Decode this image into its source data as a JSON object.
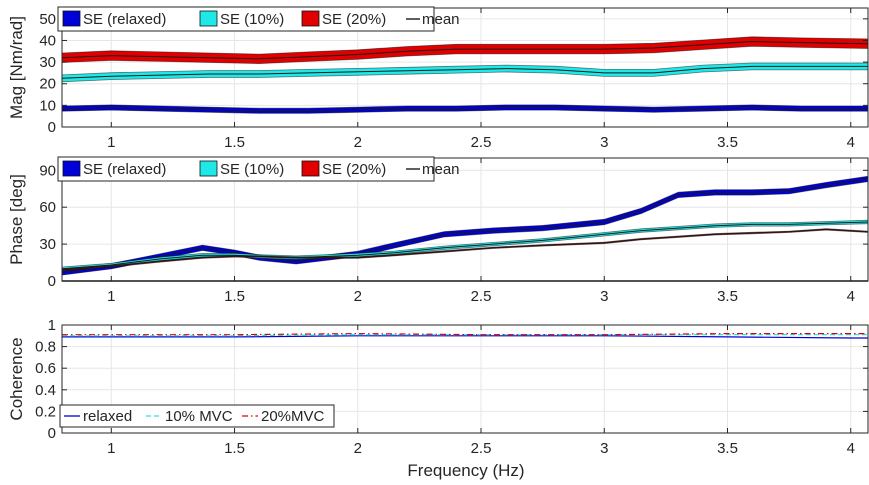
{
  "colors": {
    "relaxed": "#0000d8",
    "p10": "#1ee8e8",
    "p20": "#e00000",
    "mean": "#1a1a1a",
    "grid": "#e6e6e6",
    "axis": "#262626"
  },
  "chart_data": [
    {
      "type": "area",
      "ylabel": "Mag [Nm/rad]",
      "xlim": [
        0.8,
        4.07
      ],
      "ylim": [
        0,
        55
      ],
      "xticks": [
        1,
        1.5,
        2,
        2.5,
        3,
        3.5,
        4
      ],
      "xtick_labels": [
        "1",
        "1.5",
        "2",
        "2.5",
        "3",
        "3.5",
        "4"
      ],
      "yticks": [
        0,
        10,
        20,
        30,
        40,
        50
      ],
      "ytick_labels": [
        "0",
        "10",
        "20",
        "30",
        "40",
        "50"
      ],
      "grid": true,
      "legend_position": "top-left",
      "legend": [
        "SE (relaxed)",
        "SE (10%)",
        "SE (20%)",
        "mean"
      ],
      "x": [
        0.8,
        1.0,
        1.2,
        1.4,
        1.6,
        1.8,
        2.0,
        2.2,
        2.4,
        2.6,
        2.8,
        3.0,
        3.2,
        3.4,
        3.6,
        3.8,
        4.07
      ],
      "series": [
        {
          "name": "SE (relaxed)",
          "key": "relaxed",
          "mean": [
            8.5,
            9,
            8.5,
            8,
            7.5,
            7.5,
            8,
            8.5,
            8.5,
            9,
            9,
            8.5,
            8,
            8.5,
            9,
            8.5,
            8.5
          ],
          "band": 1.2
        },
        {
          "name": "SE (10%)",
          "key": "p10",
          "mean": [
            22.5,
            23.5,
            24,
            24.5,
            24.5,
            25,
            25.5,
            26,
            26.5,
            27,
            26.5,
            25,
            25,
            27,
            28,
            28,
            28
          ],
          "band": 1.6
        },
        {
          "name": "SE (20%)",
          "key": "p20",
          "mean": [
            32,
            33,
            32.5,
            32,
            31.5,
            32.5,
            33.5,
            35,
            36,
            36,
            36,
            36,
            36.5,
            38,
            39.5,
            39,
            38.5
          ],
          "band": 2.2
        }
      ]
    },
    {
      "type": "area",
      "ylabel": "Phase [deg]",
      "xlim": [
        0.8,
        4.07
      ],
      "ylim": [
        0,
        100
      ],
      "xticks": [
        1,
        1.5,
        2,
        2.5,
        3,
        3.5,
        4
      ],
      "xtick_labels": [
        "1",
        "1.5",
        "2",
        "2.5",
        "3",
        "3.5",
        "4"
      ],
      "yticks": [
        0,
        30,
        60,
        90
      ],
      "ytick_labels": [
        "0",
        "30",
        "60",
        "90"
      ],
      "grid": true,
      "legend_position": "top-left",
      "legend": [
        "SE (relaxed)",
        "SE (10%)",
        "SE (20%)",
        "mean"
      ],
      "x": [
        0.8,
        1.0,
        1.2,
        1.37,
        1.5,
        1.6,
        1.75,
        2.0,
        2.15,
        2.35,
        2.55,
        2.75,
        3.0,
        3.15,
        3.3,
        3.45,
        3.6,
        3.75,
        3.9,
        4.07
      ],
      "series": [
        {
          "name": "SE (relaxed)",
          "key": "relaxed",
          "mean": [
            7,
            12,
            20,
            27,
            23,
            19,
            16,
            22,
            29,
            38,
            41,
            43,
            48,
            57,
            70,
            72,
            72,
            73,
            78,
            83
          ],
          "band": 2.2
        },
        {
          "name": "SE (10%)",
          "key": "p10",
          "mean": [
            10,
            13,
            18,
            21,
            21,
            20,
            19,
            21,
            23,
            27,
            30,
            33,
            38,
            41,
            43,
            45,
            46,
            46,
            47,
            48
          ],
          "band": 1.4
        },
        {
          "name": "SE (20%)",
          "key": "p20",
          "mean": [
            9,
            12,
            16,
            19,
            20,
            20,
            19,
            19,
            21,
            24,
            27,
            29,
            31,
            34,
            36,
            38,
            39,
            40,
            42,
            40
          ],
          "band": 0.6
        }
      ]
    },
    {
      "type": "line",
      "ylabel": "Coherence",
      "xlabel": "Frequency (Hz)",
      "xlim": [
        0.8,
        4.07
      ],
      "ylim": [
        0,
        1
      ],
      "xticks": [
        1,
        1.5,
        2,
        2.5,
        3,
        3.5,
        4
      ],
      "xtick_labels": [
        "1",
        "1.5",
        "2",
        "2.5",
        "3",
        "3.5",
        "4"
      ],
      "yticks": [
        0,
        0.2,
        0.4,
        0.6,
        0.8,
        1
      ],
      "ytick_labels": [
        "0",
        "0.2",
        "0.4",
        "0.6",
        "0.8",
        "1"
      ],
      "grid": true,
      "legend_position": "bottom-left",
      "legend": [
        "relaxed",
        "10% MVC",
        "20%MVC"
      ],
      "x": [
        0.8,
        1.0,
        1.5,
        2.0,
        2.5,
        3.0,
        3.5,
        4.0,
        4.07
      ],
      "series": [
        {
          "name": "relaxed",
          "key": "relaxed",
          "style": "solid",
          "values": [
            0.89,
            0.89,
            0.89,
            0.9,
            0.9,
            0.9,
            0.89,
            0.88,
            0.88
          ]
        },
        {
          "name": "10% MVC",
          "key": "p10",
          "style": "dashed",
          "values": [
            0.9,
            0.9,
            0.9,
            0.91,
            0.91,
            0.91,
            0.91,
            0.91,
            0.91
          ]
        },
        {
          "name": "20%MVC",
          "key": "p20",
          "style": "dashdot",
          "values": [
            0.91,
            0.91,
            0.91,
            0.92,
            0.91,
            0.91,
            0.92,
            0.92,
            0.92
          ]
        }
      ]
    }
  ]
}
